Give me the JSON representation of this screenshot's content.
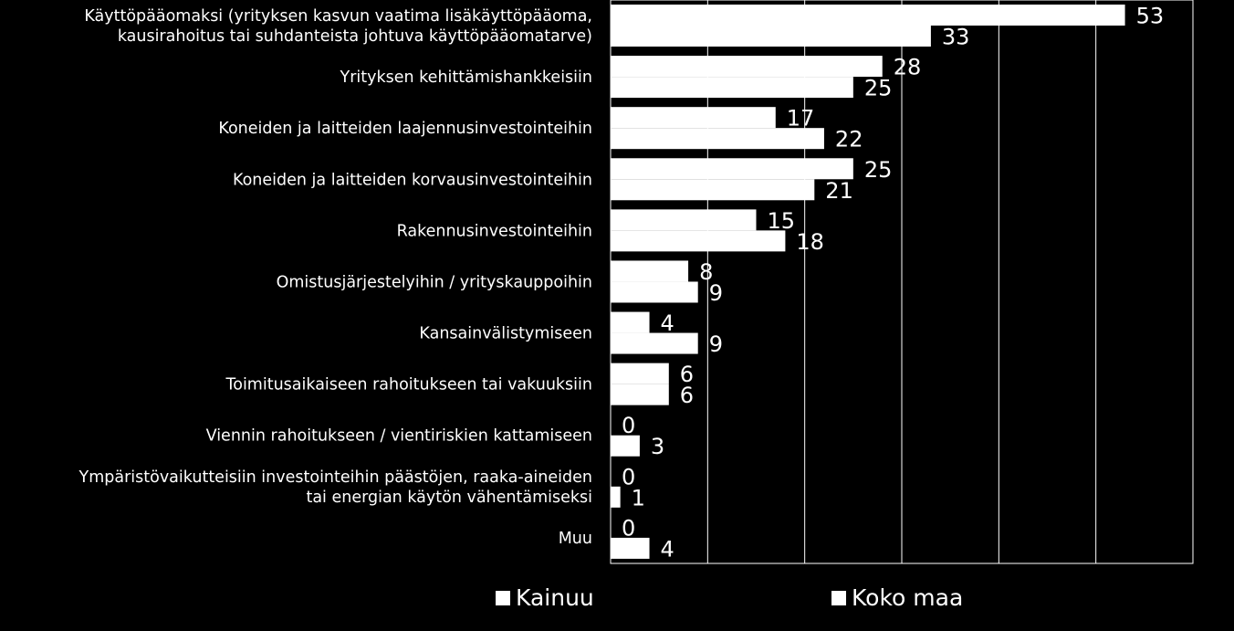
{
  "chart_data": {
    "type": "bar",
    "orientation": "horizontal",
    "title": "",
    "xlabel": "",
    "ylabel": "",
    "xlim": [
      0,
      60
    ],
    "grid": true,
    "legend_position": "bottom",
    "categories": [
      [
        "Käyttöpääomaksi (yrityksen kasvun vaatima lisäkäyttöpääoma,",
        "kausirahoitus tai suhdanteista johtuva käyttöpääomatarve)"
      ],
      [
        "Yrityksen kehittämishankkeisiin"
      ],
      [
        "Koneiden ja laitteiden laajennusinvestointeihin"
      ],
      [
        "Koneiden ja laitteiden korvausinvestointeihin"
      ],
      [
        "Rakennusinvestointeihin"
      ],
      [
        "Omistusjärjestelyihin / yrityskauppoihin"
      ],
      [
        "Kansainvälistymiseen"
      ],
      [
        "Toimitusaikaiseen rahoitukseen tai vakuuksiin"
      ],
      [
        "Viennin rahoitukseen / vientiriskien kattamiseen"
      ],
      [
        "Ympäristövaikutteisiin investointeihin päästöjen, raaka-aineiden",
        "tai energian käytön vähentämiseksi"
      ],
      [
        "Muu"
      ]
    ],
    "series": [
      {
        "name": "Kainuu",
        "values": [
          53,
          28,
          17,
          25,
          15,
          8,
          4,
          6,
          0,
          0,
          0
        ]
      },
      {
        "name": "Koko maa",
        "values": [
          33,
          25,
          22,
          21,
          18,
          9,
          9,
          6,
          3,
          1,
          4
        ]
      }
    ],
    "colors": {
      "background": "#000000",
      "bar": "#ffffff",
      "text": "#ffffff",
      "grid": "#ffffff"
    }
  }
}
